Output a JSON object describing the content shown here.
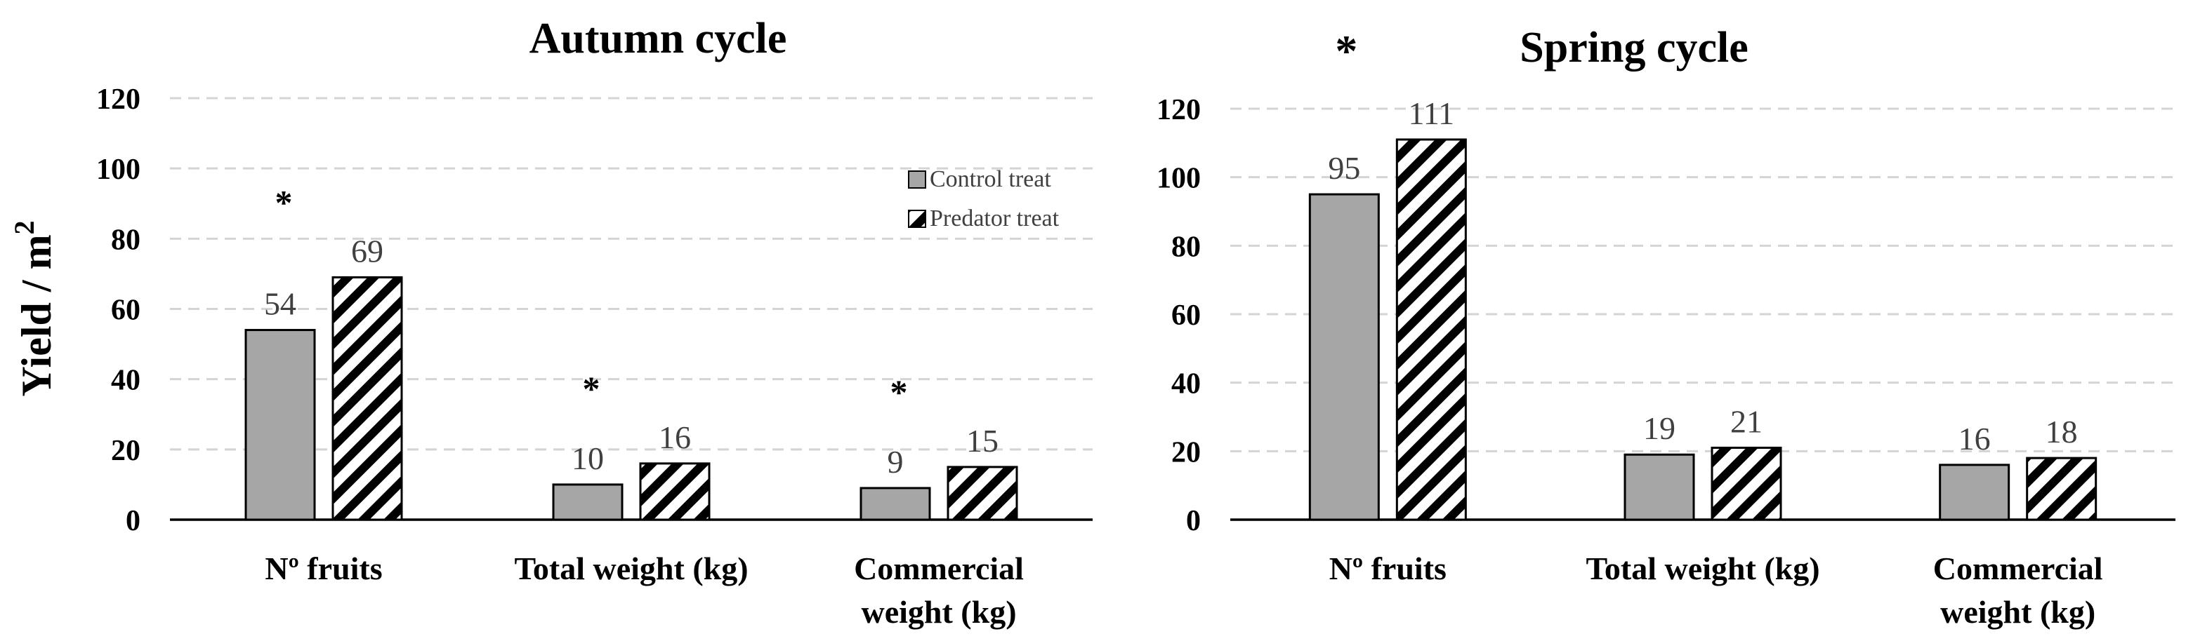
{
  "y_axis_label": "Yield / m",
  "y_axis_label_sup": "2",
  "legend": [
    {
      "key": "control",
      "label": "Control treat"
    },
    {
      "key": "predator",
      "label": "Predator treat"
    }
  ],
  "colors": {
    "control": "#a6a6a6",
    "predator_stripe": "#000000",
    "predator_bg": "#ffffff",
    "grid": "#d4d4d4"
  },
  "chart_data": [
    {
      "type": "bar",
      "title": "Autumn cycle",
      "categories": [
        {
          "lines": [
            "Nº fruits"
          ]
        },
        {
          "lines": [
            "Total weight (kg)"
          ]
        },
        {
          "lines": [
            "Commercial",
            "weight (kg)"
          ]
        }
      ],
      "series": [
        {
          "name": "Control treat",
          "values": [
            54,
            10,
            9
          ]
        },
        {
          "name": "Predator treat",
          "values": [
            69,
            16,
            15
          ]
        }
      ],
      "value_labels": [
        [
          "54",
          "10",
          "9"
        ],
        [
          "69",
          "16",
          "15"
        ]
      ],
      "significance": [
        "*",
        "*",
        "*"
      ],
      "ylim": [
        0,
        120
      ],
      "yticks": [
        "0",
        "20",
        "40",
        "60",
        "80",
        "100",
        "120"
      ],
      "legend": true
    },
    {
      "type": "bar",
      "title": "Spring cycle",
      "categories": [
        {
          "lines": [
            "Nº fruits"
          ]
        },
        {
          "lines": [
            "Total weight (kg)"
          ]
        },
        {
          "lines": [
            "Commercial",
            "weight (kg)"
          ]
        }
      ],
      "series": [
        {
          "name": "Control treat",
          "values": [
            95,
            19,
            16
          ]
        },
        {
          "name": "Predator treat",
          "values": [
            111,
            21,
            18
          ]
        }
      ],
      "value_labels": [
        [
          "95",
          "19",
          "16"
        ],
        [
          "111",
          "21",
          "18"
        ]
      ],
      "significance": [
        "*",
        "",
        ""
      ],
      "ylim": [
        0,
        120
      ],
      "yticks": [
        "0",
        "20",
        "40",
        "60",
        "80",
        "100",
        "120"
      ],
      "legend": false
    }
  ]
}
